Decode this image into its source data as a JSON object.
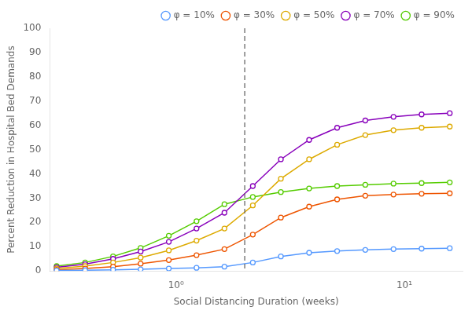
{
  "chart_data": {
    "type": "line",
    "xlabel": "Social Distancing Duration (weeks)",
    "ylabel": "Percent Reduction in Hospital Bed Demands",
    "x": [
      0.3,
      0.4,
      0.53,
      0.7,
      0.93,
      1.23,
      1.63,
      2.17,
      2.88,
      3.83,
      5.08,
      6.75,
      8.97,
      11.91,
      15.82
    ],
    "series": [
      {
        "name": "φ = 10%",
        "color": "#5599ff",
        "values": [
          0.2,
          0.3,
          0.5,
          0.7,
          1.0,
          1.3,
          1.8,
          3.5,
          6.0,
          7.5,
          8.2,
          8.7,
          9.0,
          9.2,
          9.4
        ]
      },
      {
        "name": "φ = 30%",
        "color": "#ee5500",
        "values": [
          0.5,
          1.0,
          1.8,
          3.0,
          4.5,
          6.5,
          9.0,
          15.0,
          22.0,
          26.5,
          29.5,
          31.0,
          31.5,
          31.8,
          32.0
        ]
      },
      {
        "name": "φ = 50%",
        "color": "#ddaa00",
        "values": [
          1.0,
          2.0,
          3.5,
          5.5,
          8.5,
          12.5,
          17.5,
          27.0,
          38.0,
          46.0,
          52.0,
          56.0,
          58.0,
          59.0,
          59.5
        ]
      },
      {
        "name": "φ = 70%",
        "color": "#8800bb",
        "values": [
          1.5,
          2.8,
          5.0,
          8.0,
          12.0,
          17.5,
          24.0,
          35.0,
          46.0,
          54.0,
          59.0,
          62.0,
          63.5,
          64.5,
          65.0
        ]
      },
      {
        "name": "φ = 90%",
        "color": "#55cc00",
        "values": [
          2.0,
          3.5,
          6.0,
          9.5,
          14.5,
          20.5,
          27.5,
          30.5,
          32.5,
          34.0,
          35.0,
          35.5,
          36.0,
          36.2,
          36.5
        ]
      }
    ],
    "xlim": [
      0.28,
      18.0
    ],
    "ylim": [
      0,
      100
    ],
    "xticks": [
      {
        "value": 1.0,
        "label": "10⁰"
      },
      {
        "value": 10.0,
        "label": "10¹"
      }
    ],
    "yticks": [
      0,
      10,
      20,
      30,
      40,
      50,
      60,
      70,
      80,
      90,
      100
    ],
    "vline": 2.0,
    "log": "x",
    "grid": false,
    "legend": "upper right",
    "marker": "circle"
  }
}
